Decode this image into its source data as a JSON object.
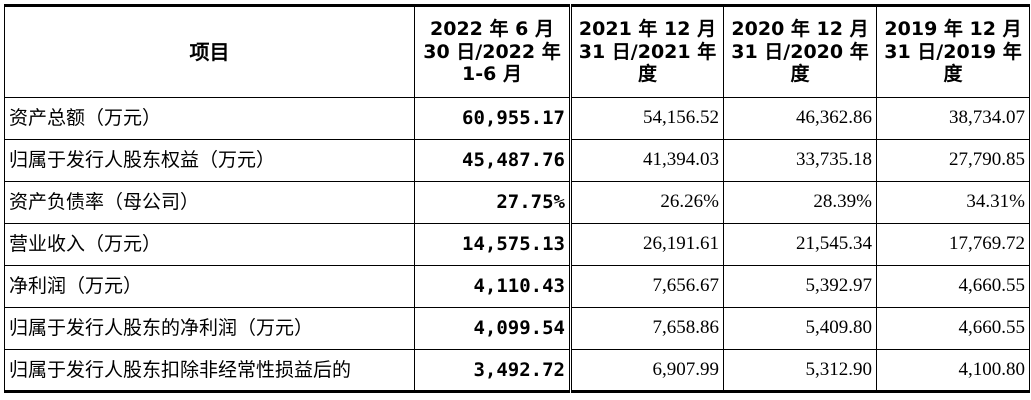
{
  "table": {
    "headers": [
      "项目",
      "2022 年 6 月 30 日/2022 年 1-6 月",
      "2021 年 12 月 31 日/2021 年度",
      "2020 年 12 月 31 日/2020 年度",
      "2019 年 12 月 31 日/2019 年度"
    ],
    "rows": [
      [
        "资产总额（万元）",
        "60,955.17",
        "54,156.52",
        "46,362.86",
        "38,734.07"
      ],
      [
        "归属于发行人股东权益（万元）",
        "45,487.76",
        "41,394.03",
        "33,735.18",
        "27,790.85"
      ],
      [
        "资产负债率（母公司）",
        "27.75%",
        "26.26%",
        "28.39%",
        "34.31%"
      ],
      [
        "营业收入（万元）",
        "14,575.13",
        "26,191.61",
        "21,545.34",
        "17,769.72"
      ],
      [
        "净利润（万元）",
        "4,110.43",
        "7,656.67",
        "5,392.97",
        "4,660.55"
      ],
      [
        "归属于发行人股东的净利润（万元）",
        "4,099.54",
        "7,658.86",
        "5,409.80",
        "4,660.55"
      ],
      [
        "归属于发行人股东扣除非经常性损益后的",
        "3,492.72",
        "6,907.99",
        "5,312.90",
        "4,100.80"
      ]
    ]
  }
}
